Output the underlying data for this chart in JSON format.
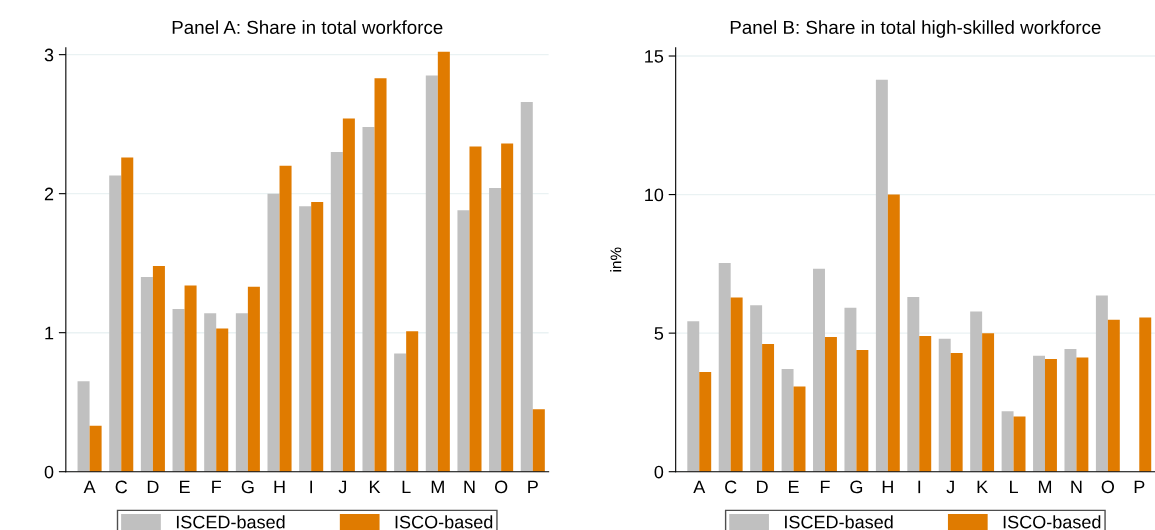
{
  "chart_data": [
    {
      "type": "bar",
      "title": "Panel A: Share in total workforce",
      "categories": [
        "A",
        "C",
        "D",
        "E",
        "F",
        "G",
        "H",
        "I",
        "J",
        "K",
        "L",
        "M",
        "N",
        "O",
        "P"
      ],
      "series": [
        {
          "name": "ISCED-based",
          "color": "#c0c0c0",
          "values": [
            0.65,
            2.13,
            1.4,
            1.17,
            1.14,
            1.14,
            2.0,
            1.91,
            2.3,
            2.48,
            0.85,
            2.85,
            1.88,
            2.04,
            2.66
          ]
        },
        {
          "name": "ISCO-based",
          "color": "#e07b00",
          "values": [
            0.33,
            2.26,
            1.48,
            1.34,
            1.03,
            1.33,
            2.2,
            1.94,
            2.54,
            2.83,
            1.01,
            3.02,
            2.34,
            2.36,
            0.45
          ]
        }
      ],
      "ylim": [
        0,
        3.05
      ],
      "yticks": [
        0,
        1,
        2,
        3
      ],
      "grid": "y",
      "legend": "bottom"
    },
    {
      "type": "bar",
      "title": "Panel B: Share in total high-skilled workforce",
      "ylabel": "in%",
      "categories": [
        "A",
        "C",
        "D",
        "E",
        "F",
        "G",
        "H",
        "I",
        "J",
        "K",
        "L",
        "M",
        "N",
        "O",
        "P"
      ],
      "series": [
        {
          "name": "ISCED-based",
          "color": "#c0c0c0",
          "values": [
            5.43,
            7.53,
            6.01,
            3.71,
            7.32,
            5.92,
            14.14,
            6.3,
            4.8,
            5.78,
            2.18,
            4.18,
            4.43,
            6.36,
            null
          ]
        },
        {
          "name": "ISCO-based",
          "color": "#e07b00",
          "values": [
            3.6,
            6.29,
            4.61,
            3.07,
            4.86,
            4.39,
            10.0,
            4.9,
            4.28,
            5.0,
            1.99,
            4.07,
            4.12,
            5.48,
            5.56
          ]
        }
      ],
      "ylim": [
        0,
        15.3
      ],
      "yticks": [
        0,
        5,
        10,
        15
      ],
      "grid": "y",
      "legend": "bottom"
    }
  ]
}
